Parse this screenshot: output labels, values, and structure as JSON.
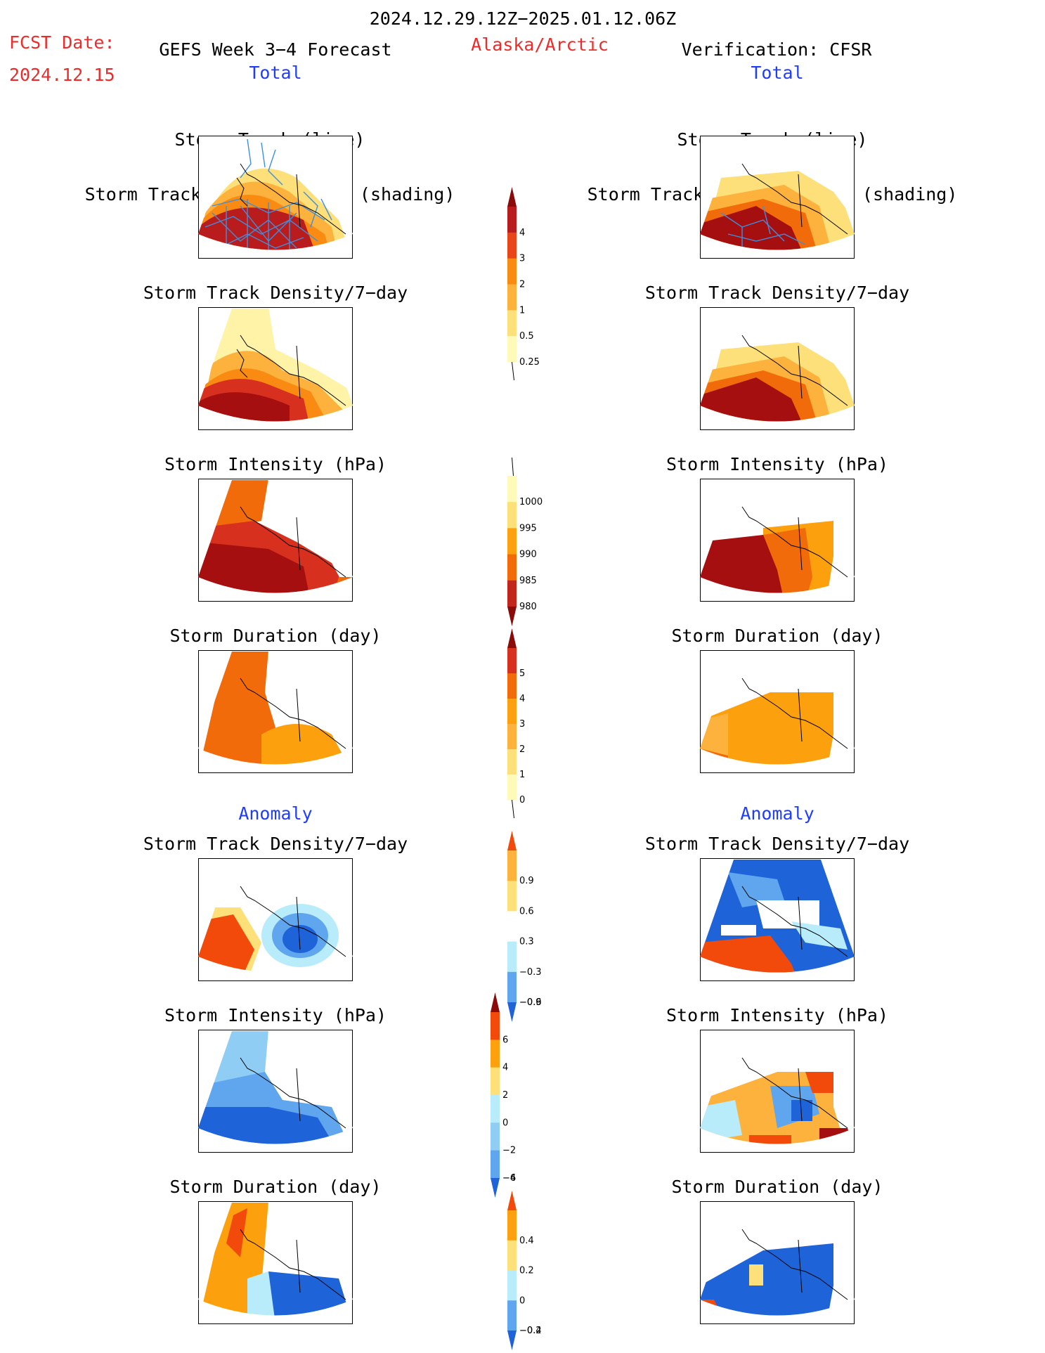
{
  "header": {
    "date_range": "2024.12.29.12Z−2025.01.12.06Z",
    "fcst_label": "FCST Date:",
    "fcst_date": "2024.12.15",
    "left_title": "GEFS Week 3−4 Forecast",
    "region": "Alaska/Arctic",
    "right_title": "Verification: CFSR"
  },
  "sections": {
    "total_left": "Total",
    "total_right": "Total",
    "anomaly_left": "Anomaly",
    "anomaly_right": "Anomaly"
  },
  "panels": {
    "track_line": "Storm Track (line)",
    "track_shading": "Storm Track Density/7−day (shading)",
    "density": "Storm Track Density/7−day",
    "intensity": "Storm Intensity (hPa)",
    "duration": "Storm Duration (day)"
  },
  "colors": {
    "dark_red": "#a50f0f",
    "red": "#d7301f",
    "orange_red": "#f26b0b",
    "orange": "#fca00d",
    "light_orange": "#fdc240",
    "pale_yellow": "#fff3a8",
    "light_blue": "#b8ecfa",
    "mid_blue": "#5fa6ef",
    "dark_blue": "#1f63d9",
    "track_blue": "#3e8fe0"
  },
  "chart_data": [
    {
      "type": "heatmap",
      "name": "Storm Track Density/7-day (total) colorbar",
      "levels": [
        "0.25",
        "0.5",
        "1",
        "2",
        "3",
        "4"
      ],
      "colors": [
        "#fffab8",
        "#fde07a",
        "#fcb23c",
        "#f98b12",
        "#e8451a",
        "#b91c1c",
        "#8b0a0a"
      ]
    },
    {
      "type": "heatmap",
      "name": "Storm Intensity (hPa) colorbar",
      "levels": [
        "1000",
        "995",
        "990",
        "985",
        "980"
      ],
      "colors": [
        "#fffab8",
        "#fde07a",
        "#fca00d",
        "#f26b0b",
        "#c2251b",
        "#8b0a0a"
      ]
    },
    {
      "type": "heatmap",
      "name": "Storm Duration (day) colorbar",
      "levels": [
        "0",
        "1",
        "2",
        "3",
        "4",
        "5"
      ],
      "colors": [
        "#fffab8",
        "#fde07a",
        "#fcb23c",
        "#fca00d",
        "#f26b0b",
        "#d7301f",
        "#8b0a0a"
      ]
    },
    {
      "type": "heatmap",
      "name": "Storm Track Density anomaly colorbar",
      "levels": [
        "0.9",
        "0.6",
        "0.3",
        "−0.3",
        "−0.6",
        "−0.9"
      ],
      "colors": [
        "#f24a0b",
        "#fcb23c",
        "#fde07a",
        "#ffffff",
        "#b8ecfa",
        "#5fa6ef",
        "#1f63d9"
      ]
    },
    {
      "type": "heatmap",
      "name": "Storm Intensity anomaly colorbar",
      "levels": [
        "6",
        "4",
        "2",
        "0",
        "−2",
        "−4",
        "−6"
      ],
      "colors": [
        "#8b0a0a",
        "#f24a0b",
        "#fca00d",
        "#fde07a",
        "#b8ecfa",
        "#8fcdf5",
        "#5fa6ef",
        "#1f63d9"
      ]
    },
    {
      "type": "heatmap",
      "name": "Storm Duration anomaly colorbar",
      "levels": [
        "0.4",
        "0.2",
        "0",
        "−0.2",
        "−0.4"
      ],
      "colors": [
        "#f24a0b",
        "#fca00d",
        "#fde07a",
        "#b8ecfa",
        "#5fa6ef",
        "#1f63d9"
      ]
    }
  ]
}
